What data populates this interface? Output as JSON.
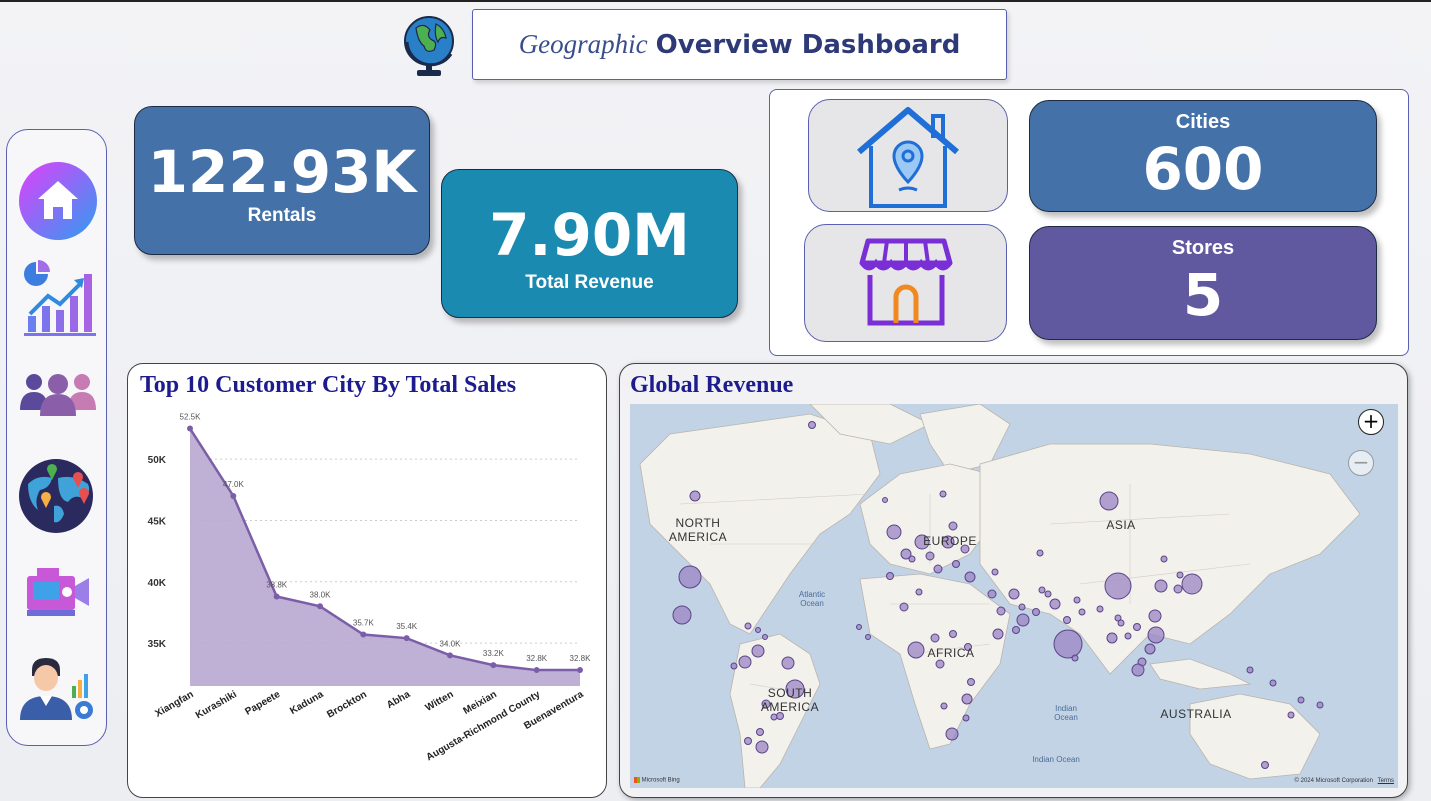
{
  "header": {
    "title_italic": "Geographic",
    "title_bold": "Overview Dashboard",
    "logo_icon": "globe-icon"
  },
  "sidebar": {
    "items": [
      {
        "name": "home",
        "icon": "home-icon"
      },
      {
        "name": "analytics",
        "icon": "analytics-chart-icon"
      },
      {
        "name": "customers",
        "icon": "users-group-icon"
      },
      {
        "name": "geography",
        "icon": "world-map-pins-icon"
      },
      {
        "name": "films",
        "icon": "video-camera-icon"
      },
      {
        "name": "staff",
        "icon": "manager-report-icon"
      }
    ]
  },
  "kpis": {
    "rentals": {
      "value": "122.93K",
      "label": "Rentals",
      "color": "#4472a8"
    },
    "revenue": {
      "value": "7.90M",
      "label": "Total Revenue",
      "color": "#1a8ab0"
    },
    "cities": {
      "value": "600",
      "label": "Cities",
      "color": "#4472a8"
    },
    "stores": {
      "value": "5",
      "label": "Stores",
      "color": "#6159a0"
    }
  },
  "line_panel": {
    "title": "Top 10 Customer City By Total Sales"
  },
  "map_panel": {
    "title": "Global Revenue",
    "continent_labels": [
      "NORTH AMERICA",
      "EUROPE",
      "ASIA",
      "AFRICA",
      "SOUTH AMERICA",
      "AUSTRALIA"
    ],
    "ocean_labels": [
      "Atlantic Ocean",
      "Indian Ocean",
      "Indian Ocean"
    ],
    "zoom_in": "+",
    "zoom_out": "−",
    "credit": "Microsoft Bing",
    "copyright": "© 2024 Microsoft Corporation",
    "terms": "Terms"
  },
  "chart_data": {
    "type": "area",
    "title": "Top 10 Customer City By Total Sales",
    "categories": [
      "Xiangfan",
      "Kurashiki",
      "Papeete",
      "Kaduna",
      "Brockton",
      "Abha",
      "Witten",
      "Meixian",
      "Augusta-Richmond County",
      "Buenaventura"
    ],
    "values": [
      52.5,
      47.0,
      38.8,
      38.0,
      35.7,
      35.4,
      34.0,
      33.2,
      32.8,
      32.8
    ],
    "data_labels": [
      "52.5K",
      "47.0K",
      "38.8K",
      "38.0K",
      "35.7K",
      "35.4K",
      "34.0K",
      "33.2K",
      "32.8K",
      "32.8K"
    ],
    "y_ticks": [
      35,
      40,
      45,
      50
    ],
    "y_tick_labels": [
      "35K",
      "40K",
      "45K",
      "50K"
    ],
    "ylim": [
      31.5,
      54.5
    ],
    "grid": true,
    "line_color": "#7b5ea7",
    "fill_color": "#b8a9d0"
  }
}
